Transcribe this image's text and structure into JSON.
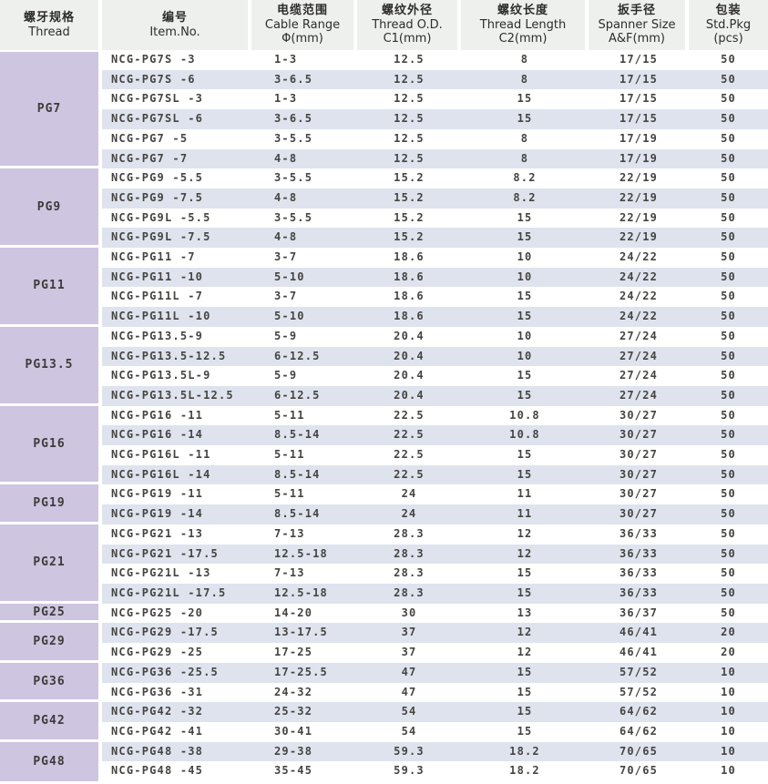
{
  "table": {
    "columns": [
      {
        "zh": "螺牙规格",
        "en": "Thread",
        "unit": ""
      },
      {
        "zh": "编号",
        "en": "Item.No.",
        "unit": ""
      },
      {
        "zh": "电缆范围",
        "en": "Cable Range",
        "unit": "Φ(mm)"
      },
      {
        "zh": "螺纹外径",
        "en": "Thread O.D.",
        "unit": "C1(mm)"
      },
      {
        "zh": "螺纹长度",
        "en": "Thread Length",
        "unit": "C2(mm)"
      },
      {
        "zh": "扳手径",
        "en": "Spanner Size",
        "unit": "A&F(mm)"
      },
      {
        "zh": "包装",
        "en": "Std.Pkg",
        "unit": "(pcs)"
      }
    ],
    "groups": [
      {
        "thread": "PG7",
        "rows": [
          [
            "NCG-PG7S -3",
            "1-3",
            "12.5",
            "8",
            "17/15",
            "50"
          ],
          [
            "NCG-PG7S -6",
            "3-6.5",
            "12.5",
            "8",
            "17/15",
            "50"
          ],
          [
            "NCG-PG7SL -3",
            "1-3",
            "12.5",
            "15",
            "17/15",
            "50"
          ],
          [
            "NCG-PG7SL -6",
            "3-6.5",
            "12.5",
            "15",
            "17/15",
            "50"
          ],
          [
            "NCG-PG7 -5",
            "3-5.5",
            "12.5",
            "8",
            "17/19",
            "50"
          ],
          [
            "NCG-PG7 -7",
            "4-8",
            "12.5",
            "8",
            "17/19",
            "50"
          ]
        ]
      },
      {
        "thread": "PG9",
        "rows": [
          [
            "NCG-PG9 -5.5",
            "3-5.5",
            "15.2",
            "8.2",
            "22/19",
            "50"
          ],
          [
            "NCG-PG9 -7.5",
            "4-8",
            "15.2",
            "8.2",
            "22/19",
            "50"
          ],
          [
            "NCG-PG9L -5.5",
            "3-5.5",
            "15.2",
            "15",
            "22/19",
            "50"
          ],
          [
            "NCG-PG9L -7.5",
            "4-8",
            "15.2",
            "15",
            "22/19",
            "50"
          ]
        ]
      },
      {
        "thread": "PG11",
        "rows": [
          [
            "NCG-PG11 -7",
            "3-7",
            "18.6",
            "10",
            "24/22",
            "50"
          ],
          [
            "NCG-PG11 -10",
            "5-10",
            "18.6",
            "10",
            "24/22",
            "50"
          ],
          [
            "NCG-PG11L -7",
            "3-7",
            "18.6",
            "15",
            "24/22",
            "50"
          ],
          [
            "NCG-PG11L -10",
            "5-10",
            "18.6",
            "15",
            "24/22",
            "50"
          ]
        ]
      },
      {
        "thread": "PG13.5",
        "rows": [
          [
            "NCG-PG13.5-9",
            "5-9",
            "20.4",
            "10",
            "27/24",
            "50"
          ],
          [
            "NCG-PG13.5-12.5",
            "6-12.5",
            "20.4",
            "10",
            "27/24",
            "50"
          ],
          [
            "NCG-PG13.5L-9",
            "5-9",
            "20.4",
            "15",
            "27/24",
            "50"
          ],
          [
            "NCG-PG13.5L-12.5",
            "6-12.5",
            "20.4",
            "15",
            "27/24",
            "50"
          ]
        ]
      },
      {
        "thread": "PG16",
        "rows": [
          [
            "NCG-PG16 -11",
            "5-11",
            "22.5",
            "10.8",
            "30/27",
            "50"
          ],
          [
            "NCG-PG16 -14",
            "8.5-14",
            "22.5",
            "10.8",
            "30/27",
            "50"
          ],
          [
            "NCG-PG16L -11",
            "5-11",
            "22.5",
            "15",
            "30/27",
            "50"
          ],
          [
            "NCG-PG16L -14",
            "8.5-14",
            "22.5",
            "15",
            "30/27",
            "50"
          ]
        ]
      },
      {
        "thread": "PG19",
        "rows": [
          [
            "NCG-PG19 -11",
            "5-11",
            "24",
            "11",
            "30/27",
            "50"
          ],
          [
            "NCG-PG19 -14",
            "8.5-14",
            "24",
            "11",
            "30/27",
            "50"
          ]
        ]
      },
      {
        "thread": "PG21",
        "rows": [
          [
            "NCG-PG21 -13",
            "7-13",
            "28.3",
            "12",
            "36/33",
            "50"
          ],
          [
            "NCG-PG21 -17.5",
            "12.5-18",
            "28.3",
            "12",
            "36/33",
            "50"
          ],
          [
            "NCG-PG21L -13",
            "7-13",
            "28.3",
            "15",
            "36/33",
            "50"
          ],
          [
            "NCG-PG21L -17.5",
            "12.5-18",
            "28.3",
            "15",
            "36/33",
            "50"
          ]
        ]
      },
      {
        "thread": "PG25",
        "rows": [
          [
            "NCG-PG25 -20",
            "14-20",
            "30",
            "13",
            "36/37",
            "50"
          ]
        ]
      },
      {
        "thread": "PG29",
        "rows": [
          [
            "NCG-PG29 -17.5",
            "13-17.5",
            "37",
            "12",
            "46/41",
            "20"
          ],
          [
            "NCG-PG29 -25",
            "17-25",
            "37",
            "12",
            "46/41",
            "20"
          ]
        ]
      },
      {
        "thread": "PG36",
        "rows": [
          [
            "NCG-PG36 -25.5",
            "17-25.5",
            "47",
            "15",
            "57/52",
            "10"
          ],
          [
            "NCG-PG36 -31",
            "24-32",
            "47",
            "15",
            "57/52",
            "10"
          ]
        ]
      },
      {
        "thread": "PG42",
        "rows": [
          [
            "NCG-PG42 -32",
            "25-32",
            "54",
            "15",
            "64/62",
            "10"
          ],
          [
            "NCG-PG42 -41",
            "30-41",
            "54",
            "15",
            "64/62",
            "10"
          ]
        ]
      },
      {
        "thread": "PG48",
        "rows": [
          [
            "NCG-PG48 -38",
            "29-38",
            "59.3",
            "18.2",
            "70/65",
            "10"
          ],
          [
            "NCG-PG48 -45",
            "35-45",
            "59.3",
            "18.2",
            "70/65",
            "10"
          ]
        ]
      }
    ]
  },
  "colors": {
    "thread_cell_bg": "#cec5e0",
    "header_bg": "#eef0ed",
    "alt_row_bg": "#dee3ee",
    "text": "#454441"
  },
  "layout_meta": {
    "row_count": 37,
    "column_count": 7
  }
}
